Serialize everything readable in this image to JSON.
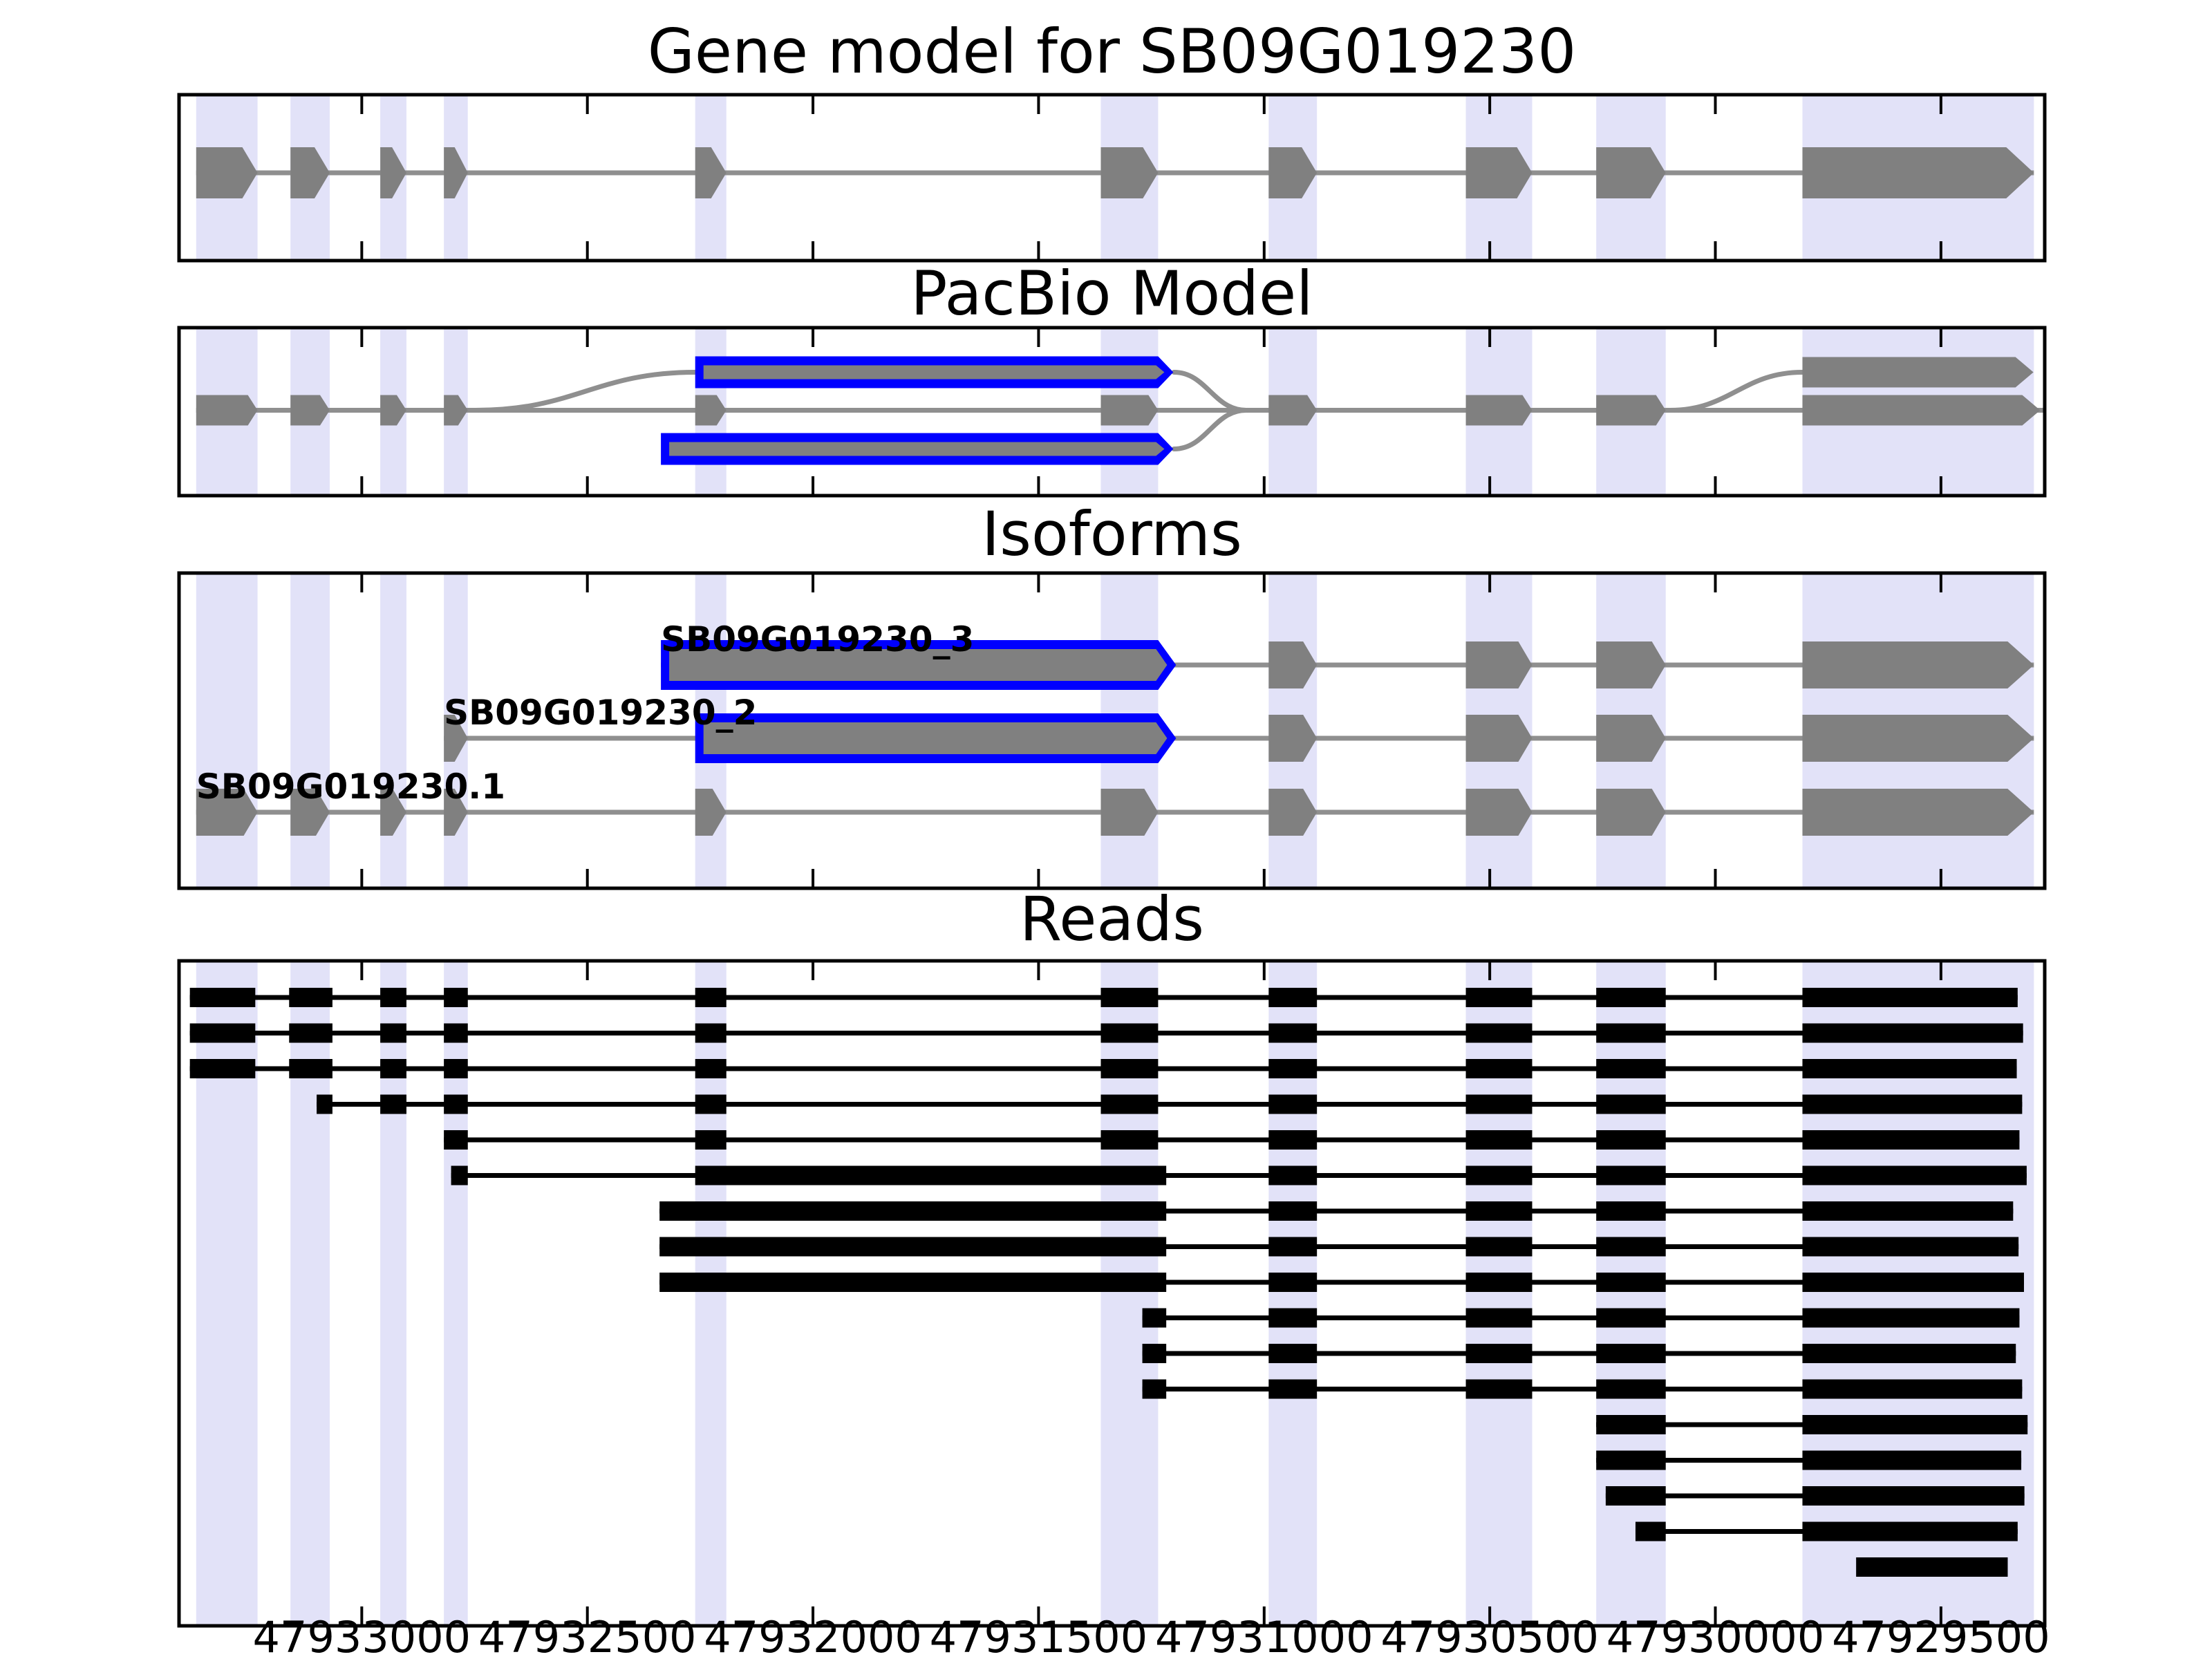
{
  "chart_data": {
    "type": "gene-model-browser",
    "gene_id": "SB09G019230",
    "layout_hints": {
      "orientation": "horizontal",
      "coordinates_decrease_rightward": true,
      "exon_highlight_bands": true
    },
    "colors": {
      "background": "#ffffff",
      "exon_fill": "#808080",
      "intron_line": "#8f8f8f",
      "novel_exon_outline": "#0000ff",
      "highlight_band": "#e2e2f8",
      "read_fill": "#000000",
      "panel_border": "#000000",
      "text": "#000000"
    },
    "axis": {
      "start": 47933405,
      "end": 47929270,
      "ticks": [
        {
          "value": 47933000,
          "label": "47933000"
        },
        {
          "value": 47932500,
          "label": "47932500"
        },
        {
          "value": 47932000,
          "label": "47932000"
        },
        {
          "value": 47931500,
          "label": "47931500"
        },
        {
          "value": 47931000,
          "label": "47931000"
        },
        {
          "value": 47930500,
          "label": "47930500"
        },
        {
          "value": 47930000,
          "label": "47930000"
        },
        {
          "value": 47929500,
          "label": "47929500"
        }
      ]
    },
    "bands": [
      [
        47933367,
        47933231
      ],
      [
        47933158,
        47933071
      ],
      [
        47932959,
        47932901
      ],
      [
        47932818,
        47932765
      ],
      [
        47932261,
        47932192
      ],
      [
        47931362,
        47931235
      ],
      [
        47930990,
        47930883
      ],
      [
        47930553,
        47930406
      ],
      [
        47930264,
        47930110
      ],
      [
        47929807,
        47929294
      ]
    ],
    "panels": [
      {
        "name": "gene-model",
        "title": "Gene model for SB09G019230",
        "transcript": {
          "exons": [
            [
              47933367,
              47933231
            ],
            [
              47933158,
              47933071
            ],
            [
              47932959,
              47932901
            ],
            [
              47932818,
              47932765
            ],
            [
              47932261,
              47932192
            ],
            [
              47931362,
              47931235
            ],
            [
              47930990,
              47930883
            ],
            [
              47930553,
              47930406
            ],
            [
              47930264,
              47930110
            ],
            [
              47929807,
              47929294
            ]
          ]
        }
      },
      {
        "name": "pacbio-model",
        "title": "PacBio Model",
        "main_exons": [
          [
            47933367,
            47933231
          ],
          [
            47933158,
            47933071
          ],
          [
            47932959,
            47932901
          ],
          [
            47932818,
            47932765
          ],
          [
            47932261,
            47932192
          ],
          [
            47931362,
            47931235
          ],
          [
            47930990,
            47930883
          ],
          [
            47930553,
            47930406
          ],
          [
            47930264,
            47930110
          ]
        ],
        "end_arrows": [
          {
            "span": [
              47929807,
              47929295
            ],
            "row": "top"
          },
          {
            "span": [
              47929807,
              47929280
            ],
            "row": "mid"
          }
        ],
        "novel_boxes": [
          {
            "span": [
              47932261,
              47931235
            ],
            "row": "top"
          },
          {
            "span": [
              47932337,
              47931235
            ],
            "row": "bottom"
          }
        ],
        "splice_curves": [
          {
            "from_bp": 47932747,
            "from_row": "mid",
            "to_bp": 47932261,
            "to_row": "top"
          },
          {
            "from_bp": 47931200,
            "from_row": "top",
            "to_bp": 47931040,
            "to_row": "mid"
          },
          {
            "from_bp": 47931200,
            "from_row": "bottom",
            "to_bp": 47931040,
            "to_row": "mid"
          },
          {
            "from_bp": 47930100,
            "from_row": "mid",
            "to_bp": 47929807,
            "to_row": "top"
          }
        ]
      },
      {
        "name": "isoforms",
        "title": "Isoforms",
        "isoforms": [
          {
            "label": "SB09G019230_3",
            "elements": [
              {
                "type": "novel",
                "span": [
                  47932337,
                  47931235
                ]
              },
              {
                "type": "exon",
                "span": [
                  47930990,
                  47930883
                ]
              },
              {
                "type": "exon",
                "span": [
                  47930553,
                  47930406
                ]
              },
              {
                "type": "exon",
                "span": [
                  47930264,
                  47930110
                ]
              },
              {
                "type": "exon",
                "span": [
                  47929807,
                  47929294
                ]
              }
            ]
          },
          {
            "label": "SB09G019230_2",
            "elements": [
              {
                "type": "exon",
                "span": [
                  47932818,
                  47932765
                ]
              },
              {
                "type": "novel",
                "span": [
                  47932261,
                  47931235
                ]
              },
              {
                "type": "exon",
                "span": [
                  47930990,
                  47930883
                ]
              },
              {
                "type": "exon",
                "span": [
                  47930553,
                  47930406
                ]
              },
              {
                "type": "exon",
                "span": [
                  47930264,
                  47930110
                ]
              },
              {
                "type": "exon",
                "span": [
                  47929807,
                  47929294
                ]
              }
            ]
          },
          {
            "label": "SB09G019230.1",
            "elements": [
              {
                "type": "exon",
                "span": [
                  47933367,
                  47933231
                ]
              },
              {
                "type": "exon",
                "span": [
                  47933158,
                  47933071
                ]
              },
              {
                "type": "exon",
                "span": [
                  47932959,
                  47932901
                ]
              },
              {
                "type": "exon",
                "span": [
                  47932818,
                  47932765
                ]
              },
              {
                "type": "exon",
                "span": [
                  47932261,
                  47932192
                ]
              },
              {
                "type": "exon",
                "span": [
                  47931362,
                  47931235
                ]
              },
              {
                "type": "exon",
                "span": [
                  47930990,
                  47930883
                ]
              },
              {
                "type": "exon",
                "span": [
                  47930553,
                  47930406
                ]
              },
              {
                "type": "exon",
                "span": [
                  47930264,
                  47930110
                ]
              },
              {
                "type": "exon",
                "span": [
                  47929807,
                  47929294
                ]
              }
            ]
          }
        ]
      },
      {
        "name": "reads",
        "title": "Reads",
        "reads": [
          {
            "exons": [
              [
                47933381,
                47933236
              ],
              [
                47933161,
                47933065
              ],
              [
                47932959,
                47932901
              ],
              [
                47932818,
                47932765
              ],
              [
                47932261,
                47932192
              ],
              [
                47931362,
                47931235
              ],
              [
                47930990,
                47930883
              ],
              [
                47930553,
                47930406
              ],
              [
                47930264,
                47930110
              ],
              [
                47929807,
                47929330
              ]
            ]
          },
          {
            "exons": [
              [
                47933381,
                47933236
              ],
              [
                47933161,
                47933065
              ],
              [
                47932959,
                47932901
              ],
              [
                47932818,
                47932765
              ],
              [
                47932261,
                47932192
              ],
              [
                47931362,
                47931235
              ],
              [
                47930990,
                47930883
              ],
              [
                47930553,
                47930406
              ],
              [
                47930264,
                47930110
              ],
              [
                47929807,
                47929318
              ]
            ]
          },
          {
            "exons": [
              [
                47933381,
                47933236
              ],
              [
                47933161,
                47933065
              ],
              [
                47932959,
                47932901
              ],
              [
                47932818,
                47932765
              ],
              [
                47932261,
                47932192
              ],
              [
                47931362,
                47931235
              ],
              [
                47930990,
                47930883
              ],
              [
                47930553,
                47930406
              ],
              [
                47930264,
                47930110
              ],
              [
                47929807,
                47929332
              ]
            ]
          },
          {
            "exons": [
              [
                47933100,
                47933065
              ],
              [
                47932959,
                47932901
              ],
              [
                47932818,
                47932765
              ],
              [
                47932261,
                47932192
              ],
              [
                47931362,
                47931235
              ],
              [
                47930990,
                47930883
              ],
              [
                47930553,
                47930406
              ],
              [
                47930264,
                47930110
              ],
              [
                47929807,
                47929320
              ]
            ]
          },
          {
            "exons": [
              [
                47932818,
                47932765
              ],
              [
                47932261,
                47932192
              ],
              [
                47931362,
                47931235
              ],
              [
                47930990,
                47930883
              ],
              [
                47930553,
                47930406
              ],
              [
                47930264,
                47930110
              ],
              [
                47929807,
                47929326
              ]
            ]
          },
          {
            "exons": [
              [
                47932802,
                47932765
              ],
              [
                47932261,
                47931217
              ],
              [
                47930990,
                47930883
              ],
              [
                47930553,
                47930406
              ],
              [
                47930264,
                47930110
              ],
              [
                47929807,
                47929310
              ]
            ]
          },
          {
            "exons": [
              [
                47932340,
                47931217
              ],
              [
                47930990,
                47930883
              ],
              [
                47930553,
                47930406
              ],
              [
                47930264,
                47930110
              ],
              [
                47929807,
                47929340
              ]
            ]
          },
          {
            "exons": [
              [
                47932340,
                47931217
              ],
              [
                47930990,
                47930883
              ],
              [
                47930553,
                47930406
              ],
              [
                47930264,
                47930110
              ],
              [
                47929807,
                47929328
              ]
            ]
          },
          {
            "exons": [
              [
                47932340,
                47931217
              ],
              [
                47930990,
                47930883
              ],
              [
                47930553,
                47930406
              ],
              [
                47930264,
                47930110
              ],
              [
                47929807,
                47929316
              ]
            ]
          },
          {
            "exons": [
              [
                47931270,
                47931217
              ],
              [
                47930990,
                47930883
              ],
              [
                47930553,
                47930406
              ],
              [
                47930264,
                47930110
              ],
              [
                47929807,
                47929326
              ]
            ]
          },
          {
            "exons": [
              [
                47931270,
                47931217
              ],
              [
                47930990,
                47930883
              ],
              [
                47930553,
                47930406
              ],
              [
                47930264,
                47930110
              ],
              [
                47929807,
                47929334
              ]
            ]
          },
          {
            "exons": [
              [
                47931270,
                47931217
              ],
              [
                47930990,
                47930883
              ],
              [
                47930553,
                47930406
              ],
              [
                47930264,
                47930110
              ],
              [
                47929807,
                47929320
              ]
            ]
          },
          {
            "exons": [
              [
                47930264,
                47930110
              ],
              [
                47929807,
                47929308
              ]
            ]
          },
          {
            "exons": [
              [
                47930264,
                47930110
              ],
              [
                47929807,
                47929322
              ]
            ]
          },
          {
            "exons": [
              [
                47930243,
                47930110
              ],
              [
                47929807,
                47929315
              ]
            ]
          },
          {
            "exons": [
              [
                47930177,
                47930110
              ],
              [
                47929807,
                47929330
              ]
            ]
          },
          {
            "exons": [
              [
                47929688,
                47929352
              ]
            ]
          }
        ]
      }
    ]
  }
}
